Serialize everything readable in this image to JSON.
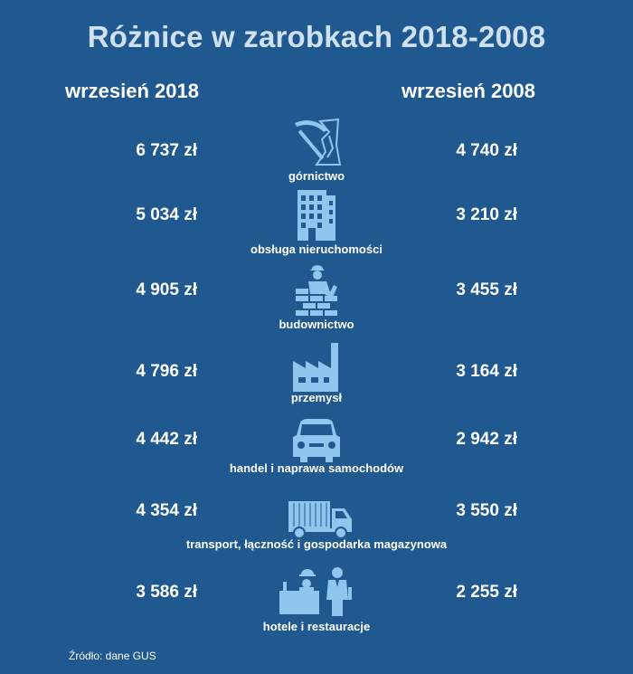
{
  "title": "Różnice w zarobkach 2018-2008",
  "columns": {
    "left": "wrzesień 2018",
    "right": "wrzesień 2008"
  },
  "rows": [
    {
      "label": "górnictwo",
      "value_2018": "6 737 zł",
      "value_2008": "4 740 zł",
      "icon": "mining-icon"
    },
    {
      "label": "obsługa nieruchomości",
      "value_2018": "5 034 zł",
      "value_2008": "3 210 zł",
      "icon": "building-icon"
    },
    {
      "label": "budownictwo",
      "value_2018": "4 905 zł",
      "value_2008": "3 455 zł",
      "icon": "construction-worker-icon"
    },
    {
      "label": "przemysł",
      "value_2018": "4 796 zł",
      "value_2008": "3 164 zł",
      "icon": "factory-icon"
    },
    {
      "label": "handel i naprawa samochodów",
      "value_2018": "4 442 zł",
      "value_2008": "2 942 zł",
      "icon": "car-icon"
    },
    {
      "label": "transport, łączność i gospodarka magazynowa",
      "value_2018": "4 354 zł",
      "value_2008": "3 550 zł",
      "icon": "truck-icon"
    },
    {
      "label": "hotele i restauracje",
      "value_2018": "3 586 zł",
      "value_2008": "2 255 zł",
      "icon": "waiter-icon"
    }
  ],
  "source": "Źródło: dane GUS",
  "colors": {
    "background": "#20598f",
    "icon": "#8ec6ee",
    "title": "#cfe0ef",
    "text": "#ffffff"
  }
}
